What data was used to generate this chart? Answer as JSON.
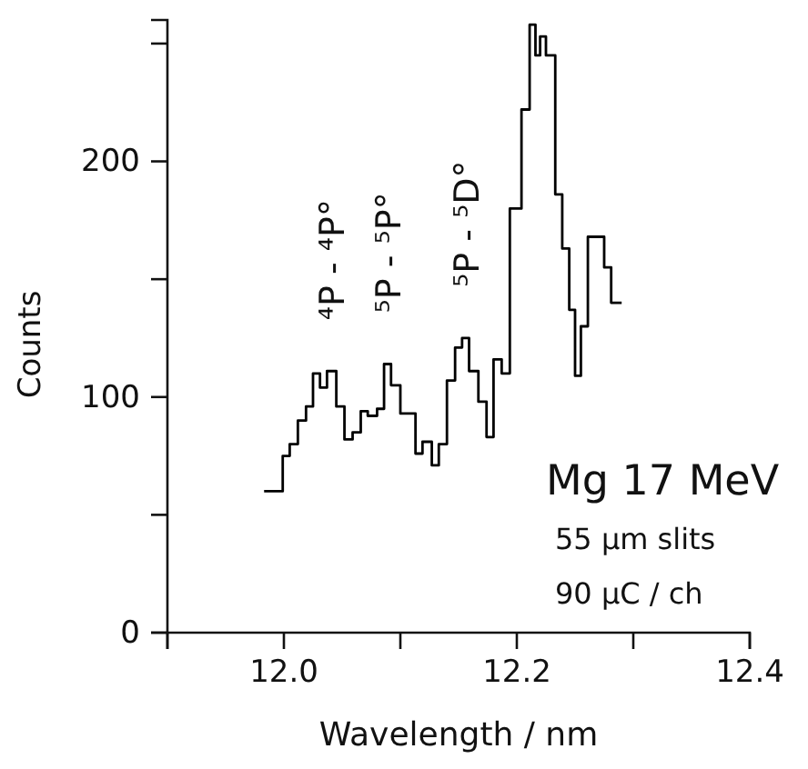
{
  "chart_data": {
    "type": "step",
    "xlabel": "Wavelength / nm",
    "ylabel": "Counts",
    "x": [
      11.983,
      11.993,
      11.999,
      12.005,
      12.012,
      12.019,
      12.025,
      12.031,
      12.037,
      12.045,
      12.052,
      12.059,
      12.066,
      12.072,
      12.08,
      12.086,
      12.092,
      12.1,
      12.113,
      12.119,
      12.127,
      12.133,
      12.14,
      12.147,
      12.153,
      12.159,
      12.167,
      12.174,
      12.18,
      12.187,
      12.194,
      12.204,
      12.211,
      12.216,
      12.22,
      12.225,
      12.233,
      12.239,
      12.245,
      12.25,
      12.255,
      12.261,
      12.268,
      12.275,
      12.281,
      12.29
    ],
    "values": [
      60,
      60,
      75,
      80,
      90,
      96,
      110,
      104,
      111,
      96,
      82,
      85,
      94,
      92,
      95,
      114,
      105,
      93,
      76,
      81,
      71,
      80,
      107,
      121,
      125,
      111,
      98,
      83,
      116,
      110,
      180,
      222,
      258,
      245,
      253,
      245,
      186,
      163,
      137,
      109,
      130,
      168,
      168,
      155,
      140,
      140
    ],
    "color": "#000000",
    "xlim": [
      11.9,
      12.4
    ],
    "xticks": [
      {
        "value": 11.9,
        "label": null
      },
      {
        "value": 12.0,
        "label": "12.0"
      },
      {
        "value": 12.1,
        "label": null
      },
      {
        "value": 12.2,
        "label": "12.2"
      },
      {
        "value": 12.3,
        "label": null
      },
      {
        "value": 12.4,
        "label": "12.4"
      }
    ],
    "ylim": [
      0,
      260
    ],
    "yticks": [
      0,
      {
        "value": 50,
        "label": null
      },
      100,
      {
        "value": 150,
        "label": null
      },
      200,
      {
        "value": 250,
        "label": null
      }
    ],
    "annotations": [
      {
        "text": "⁴P - ⁴P°",
        "x": 12.041,
        "y": 111
      },
      {
        "text": "⁵P - ⁵P°",
        "x": 12.089,
        "y": 114
      },
      {
        "text": "⁵P - ⁵D°",
        "x": 12.156,
        "y": 125
      },
      "Mg 17 MeV",
      "55 µm slits",
      "90 µC / ch"
    ]
  }
}
